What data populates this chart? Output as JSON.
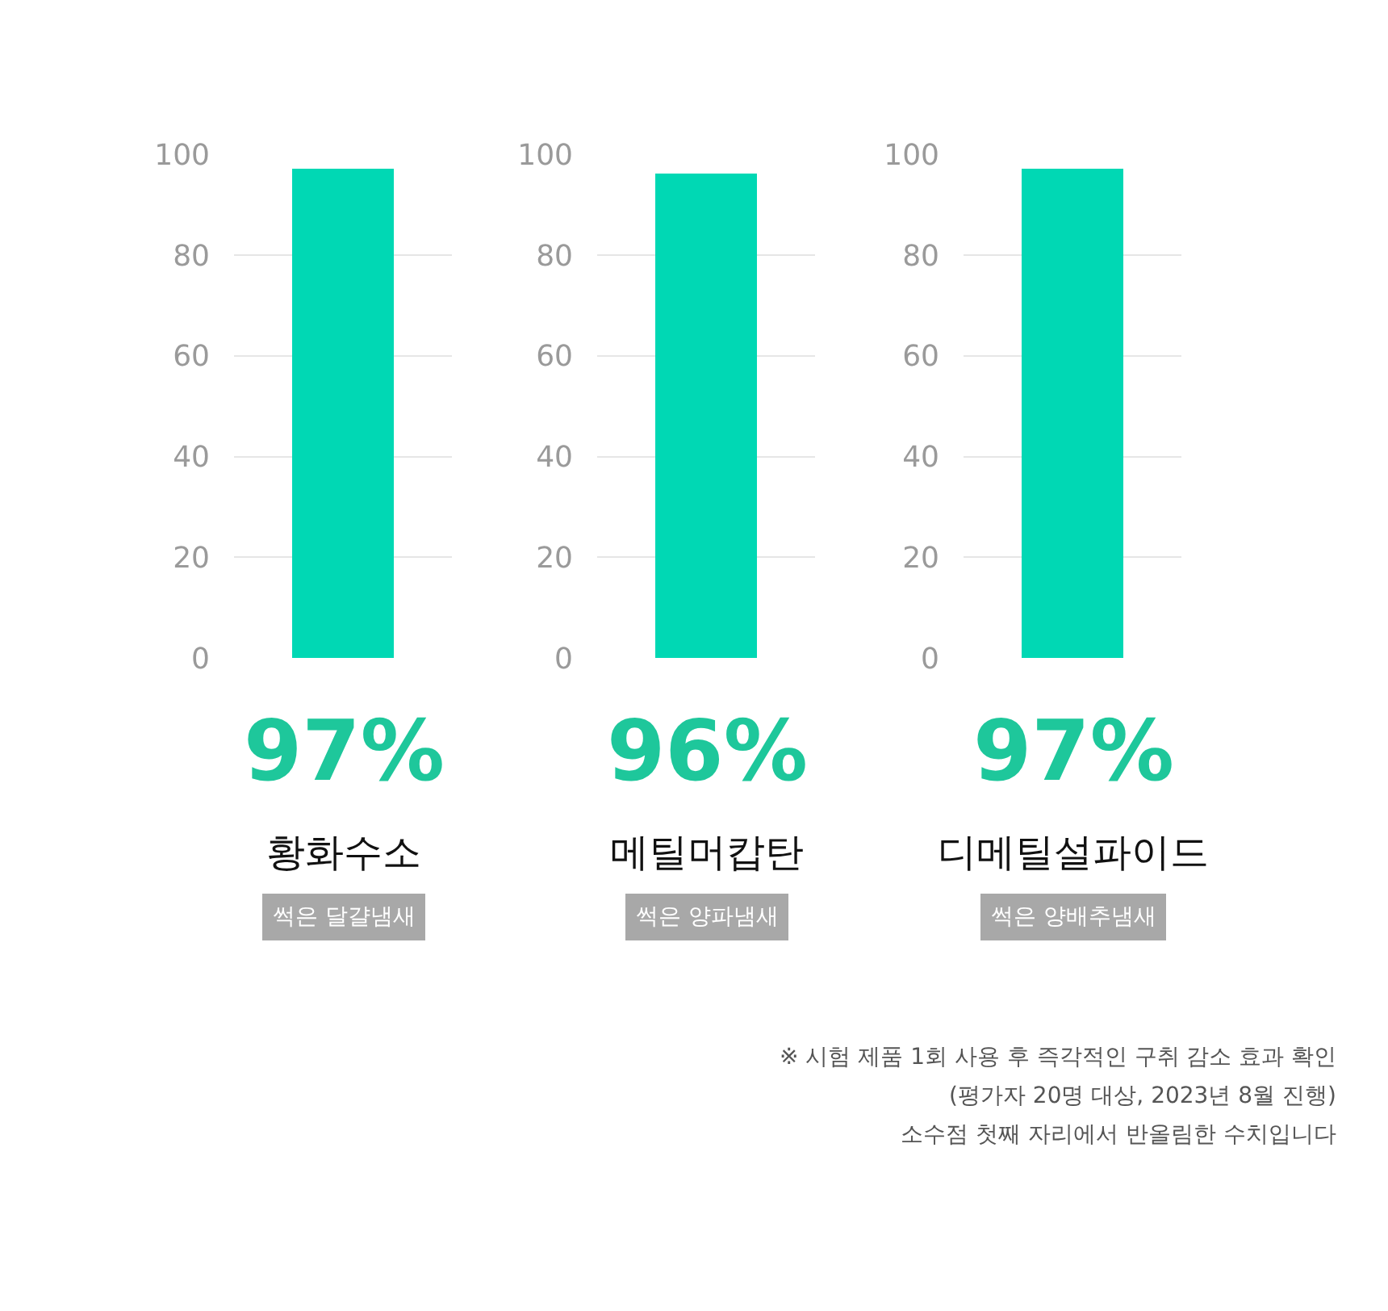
{
  "chart_data": [
    {
      "type": "bar",
      "categories": [
        null
      ],
      "values": [
        97
      ],
      "value_labels": [
        "97%"
      ],
      "color": "#00d8b4",
      "xlabel": "황화수소",
      "ylim": [
        0,
        100
      ],
      "yticks": [
        0,
        20,
        40,
        60,
        80,
        100
      ],
      "grid": "y",
      "annotations": [
        "썩은 달걀냄새"
      ]
    },
    {
      "type": "bar",
      "categories": [
        null
      ],
      "values": [
        96
      ],
      "value_labels": [
        "96%"
      ],
      "color": "#00d8b4",
      "xlabel": "메틸머캅탄",
      "ylim": [
        0,
        100
      ],
      "yticks": [
        0,
        20,
        40,
        60,
        80,
        100
      ],
      "grid": "y",
      "annotations": [
        "썩은 양파냄새"
      ]
    },
    {
      "type": "bar",
      "categories": [
        null
      ],
      "values": [
        97
      ],
      "value_labels": [
        "97%"
      ],
      "color": "#00d8b4",
      "xlabel": "디메틸설파이드",
      "ylim": [
        0,
        100
      ],
      "yticks": [
        0,
        20,
        40,
        60,
        80,
        100
      ],
      "grid": "y",
      "annotations": [
        "썩은 양배추냄새",
        "※ 시험 제품 1회 사용 후 즉각적인 구취 감소 효과 확인",
        "(평가자 20명 대상, 2023년 8월 진행)",
        "소수점 첫째 자리에서 반올림한 수치입니다"
      ]
    }
  ]
}
